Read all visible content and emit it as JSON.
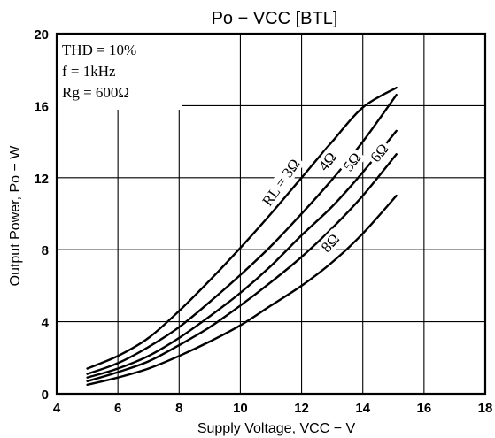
{
  "chart_data": {
    "type": "line",
    "title": "Po  −  VCC [BTL]",
    "xlabel": "Supply Voltage, VCC − V",
    "ylabel": "Output Power, Po − W",
    "xlim": [
      4,
      18
    ],
    "ylim": [
      0,
      20
    ],
    "xticks": [
      "4",
      "6",
      "8",
      "10",
      "12",
      "14",
      "16",
      "18"
    ],
    "yticks": [
      "0",
      "4",
      "8",
      "12",
      "16",
      "20"
    ],
    "grid": true,
    "conditions": [
      "THD = 10%",
      "f = 1kHz",
      "Rg = 600Ω"
    ],
    "series": [
      {
        "name": "RL = 3Ω",
        "x": [
          5,
          6,
          7,
          8,
          9,
          10,
          11,
          12,
          13,
          14,
          15.1
        ],
        "y": [
          1.4,
          2.1,
          3.1,
          4.6,
          6.3,
          8.1,
          10.0,
          12.0,
          14.0,
          15.9,
          17.0
        ]
      },
      {
        "name": "4Ω",
        "x": [
          5,
          6,
          7,
          8,
          9,
          10,
          11,
          12,
          13,
          14,
          15.1
        ],
        "y": [
          1.1,
          1.7,
          2.6,
          3.7,
          5.1,
          6.6,
          8.2,
          10.0,
          11.9,
          14.0,
          16.6
        ]
      },
      {
        "name": "5Ω",
        "x": [
          5,
          6,
          7,
          8,
          9,
          10,
          11,
          12,
          13,
          14,
          15.1
        ],
        "y": [
          0.9,
          1.4,
          2.1,
          3.1,
          4.3,
          5.6,
          7.1,
          8.8,
          10.4,
          12.3,
          14.6
        ]
      },
      {
        "name": "6Ω",
        "x": [
          5,
          6,
          7,
          8,
          9,
          10,
          11,
          12,
          13,
          14,
          15.1
        ],
        "y": [
          0.7,
          1.2,
          1.8,
          2.7,
          3.7,
          4.9,
          6.2,
          7.6,
          9.2,
          11.0,
          13.3
        ]
      },
      {
        "name": "8Ω",
        "x": [
          5,
          6,
          7,
          8,
          9,
          10,
          11,
          12,
          13,
          14,
          15.1
        ],
        "y": [
          0.5,
          0.9,
          1.4,
          2.1,
          2.9,
          3.8,
          4.9,
          6.0,
          7.3,
          8.9,
          11.0
        ]
      }
    ]
  }
}
